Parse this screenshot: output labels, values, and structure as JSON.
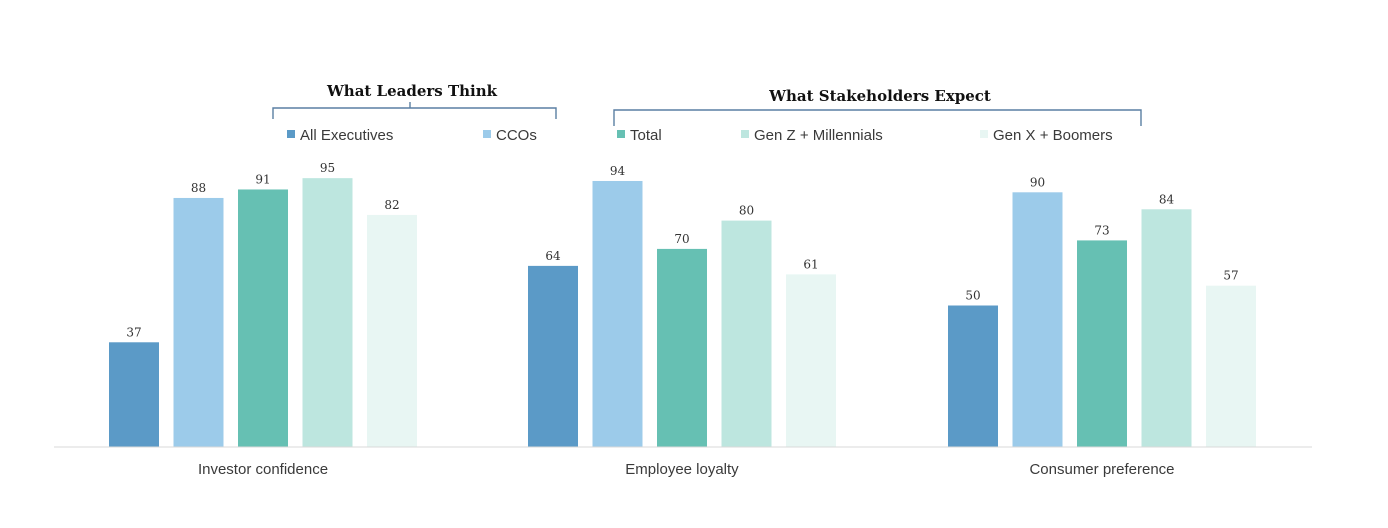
{
  "chart_data": {
    "type": "bar",
    "categories": [
      "Investor confidence",
      "Employee loyalty",
      "Consumer preference"
    ],
    "series": [
      {
        "name": "All Executives",
        "color": "#5b9ac7",
        "values": [
          37,
          64,
          50
        ]
      },
      {
        "name": "CCOs",
        "color": "#9ccbea",
        "values": [
          88,
          94,
          90
        ]
      },
      {
        "name": "Total",
        "color": "#66c0b3",
        "values": [
          91,
          70,
          73
        ]
      },
      {
        "name": "Gen Z + Millennials",
        "color": "#bde6df",
        "values": [
          95,
          80,
          84
        ]
      },
      {
        "name": "Gen X + Boomers",
        "color": "#e8f6f3",
        "values": [
          82,
          61,
          57
        ]
      }
    ],
    "value_labels": [
      [
        "37",
        "64",
        "50"
      ],
      [
        "88",
        "94",
        "90"
      ],
      [
        "91",
        "70",
        "73"
      ],
      [
        "95",
        "80",
        "84"
      ],
      [
        "82",
        "61",
        "57"
      ]
    ],
    "group_titles": [
      "What Leaders Think",
      "What Stakeholders Expect"
    ],
    "ylim": [
      0,
      100
    ],
    "grid": false,
    "legend_position": "top"
  }
}
